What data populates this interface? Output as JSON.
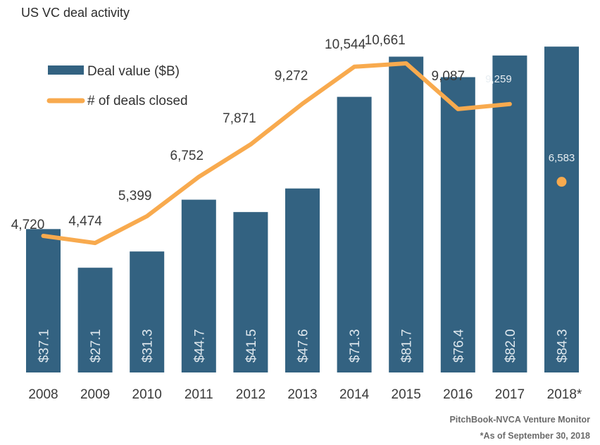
{
  "chart_data": {
    "type": "bar",
    "title": "US VC deal activity",
    "categories": [
      "2008",
      "2009",
      "2010",
      "2011",
      "2012",
      "2013",
      "2014",
      "2015",
      "2016",
      "2017",
      "2018*"
    ],
    "series": [
      {
        "name": "Deal value ($B)",
        "type": "bar",
        "color": "#336281",
        "values": [
          37.1,
          27.1,
          31.3,
          44.7,
          41.5,
          47.6,
          71.3,
          81.7,
          76.4,
          82.0,
          84.3
        ],
        "labels": [
          "$37.1",
          "$27.1",
          "$31.3",
          "$44.7",
          "$41.5",
          "$47.6",
          "$71.3",
          "$81.7",
          "$76.4",
          "$82.0",
          "$84.3"
        ]
      },
      {
        "name": "# of deals closed",
        "type": "line",
        "color": "#F8AA4E",
        "values": [
          4720,
          4474,
          5399,
          6752,
          7871,
          9272,
          10544,
          10661,
          9087,
          9259,
          6583
        ],
        "labels": [
          "4,720",
          "4,474",
          "5,399",
          "6,752",
          "7,871",
          "9,272",
          "10,544",
          "10,661",
          "9,087",
          "9,259",
          "6,583"
        ],
        "note": "2018* shown as a standalone point (partial year)"
      }
    ],
    "xlabel": "",
    "ylabel": "",
    "grid": false,
    "legend": {
      "placement": "top-left",
      "entries": [
        "Deal value ($B)",
        "# of deals closed"
      ]
    },
    "annotations": [
      "PitchBook-NVCA Venture Monitor",
      "*As of September 30, 2018"
    ]
  },
  "source": {
    "line1": "PitchBook-NVCA Venture Monitor",
    "line2": "*As of September 30, 2018"
  }
}
